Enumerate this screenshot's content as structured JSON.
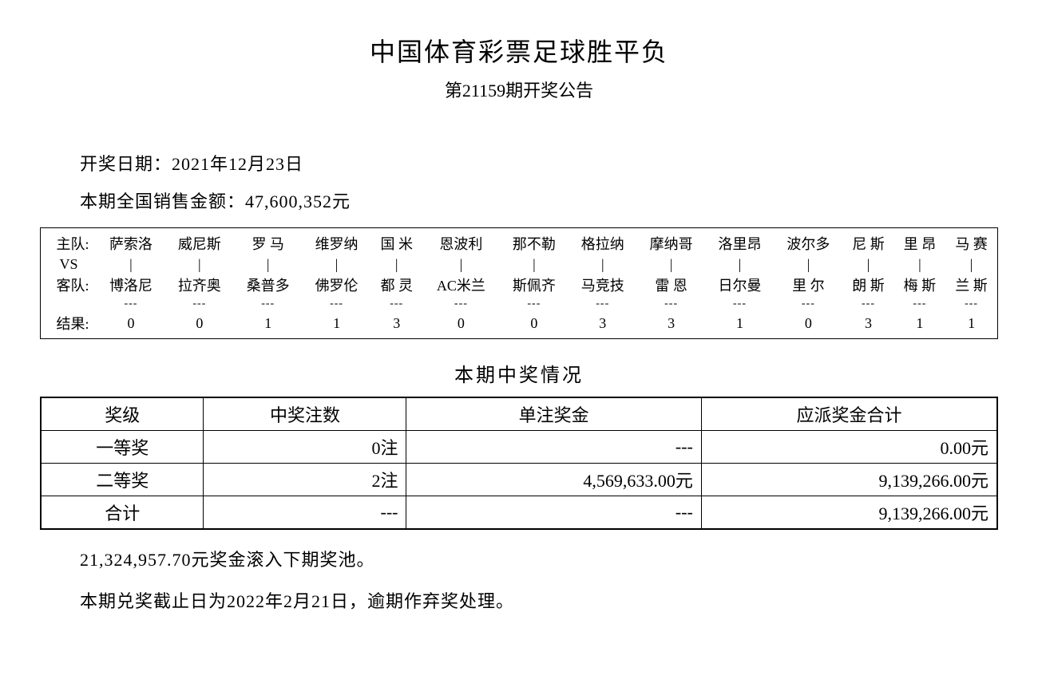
{
  "title": "中国体育彩票足球胜平负",
  "subtitle": "第21159期开奖公告",
  "draw_date_label": "开奖日期：2021年12月23日",
  "sales_label": "本期全国销售金额：47,600,352元",
  "match": {
    "row_labels": {
      "home": "主队:",
      "vs": "VS",
      "away": "客队:",
      "result": "结果:"
    },
    "home": [
      "萨索洛",
      "威尼斯",
      "罗 马",
      "维罗纳",
      "国 米",
      "恩波利",
      "那不勒",
      "格拉纳",
      "摩纳哥",
      "洛里昂",
      "波尔多",
      "尼 斯",
      "里 昂",
      "马 赛"
    ],
    "away": [
      "博洛尼",
      "拉齐奥",
      "桑普多",
      "佛罗伦",
      "都 灵",
      "AC米兰",
      "斯佩齐",
      "马竞技",
      "雷 恩",
      "日尔曼",
      "里 尔",
      "朗 斯",
      "梅 斯",
      "兰 斯"
    ],
    "result": [
      "0",
      "0",
      "1",
      "1",
      "3",
      "0",
      "0",
      "3",
      "3",
      "1",
      "0",
      "3",
      "1",
      "1"
    ],
    "vs_mark": "|",
    "dash": "---"
  },
  "prize_heading": "本期中奖情况",
  "prize_table": {
    "headers": [
      "奖级",
      "中奖注数",
      "单注奖金",
      "应派奖金合计"
    ],
    "rows": [
      {
        "level": "一等奖",
        "count": "0注",
        "unit": "---",
        "total": "0.00元"
      },
      {
        "level": "二等奖",
        "count": "2注",
        "unit": "4,569,633.00元",
        "total": "9,139,266.00元"
      },
      {
        "level": "合计",
        "count": "---",
        "unit": "---",
        "total": "9,139,266.00元"
      }
    ]
  },
  "rollover": "21,324,957.70元奖金滚入下期奖池。",
  "deadline": "本期兑奖截止日为2022年2月21日，逾期作弃奖处理。"
}
